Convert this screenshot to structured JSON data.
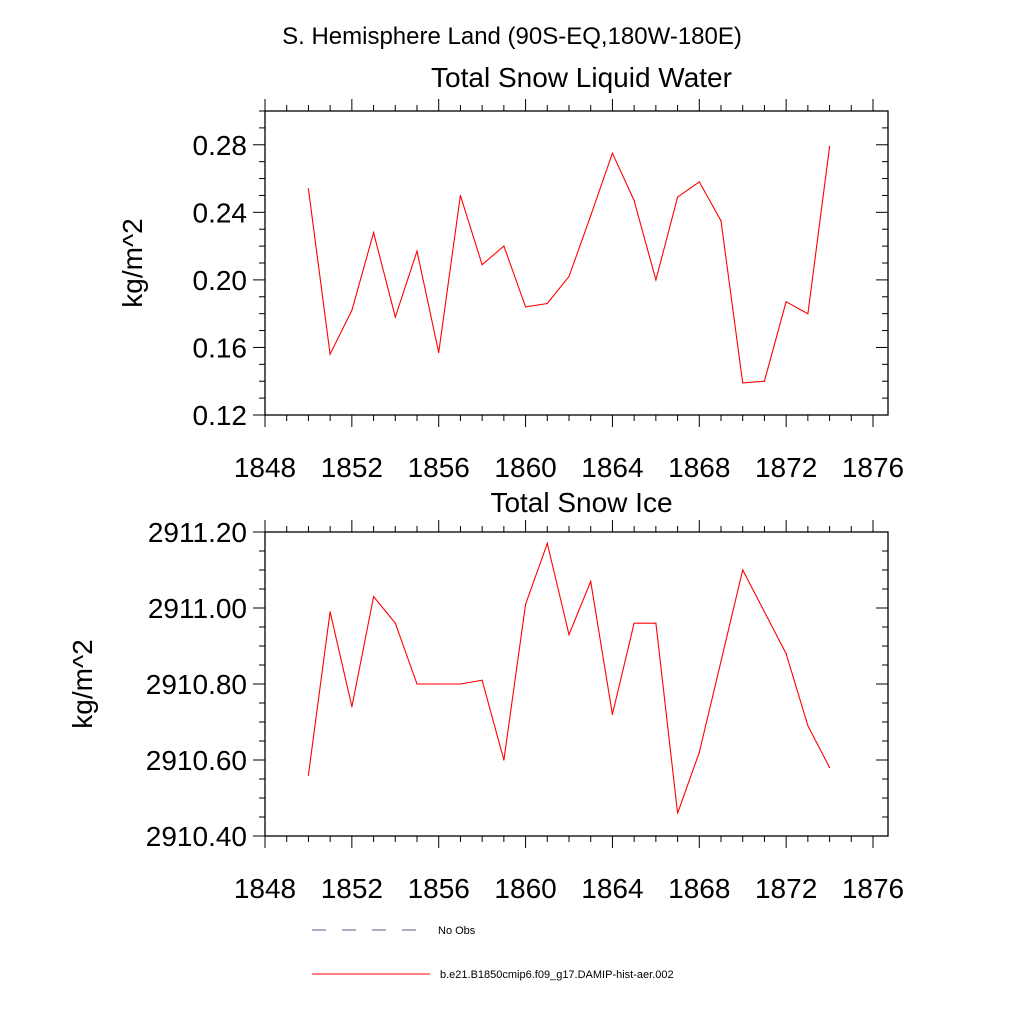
{
  "figure": {
    "title": "S. Hemisphere Land (90S-EQ,180W-180E)",
    "legend": [
      {
        "label": "No Obs",
        "style": "dashed",
        "color": "#5a5a8a"
      },
      {
        "label": "b.e21.B1850cmip6.f09_g17.DAMIP-hist-aer.002",
        "style": "solid",
        "color": "#ff0000"
      }
    ]
  },
  "chart_data": [
    {
      "type": "line",
      "title": "Total Snow Liquid Water",
      "xlabel": "",
      "ylabel": "kg/m^2",
      "xlim": [
        1848,
        1876
      ],
      "ylim": [
        0.12,
        0.3
      ],
      "x_ticks": [
        1848,
        1852,
        1856,
        1860,
        1864,
        1868,
        1872,
        1876
      ],
      "x_tick_labels": [
        "1848",
        "1852",
        "1856",
        "1860",
        "1864",
        "1868",
        "1872",
        "1876"
      ],
      "y_ticks": [
        0.12,
        0.16,
        0.2,
        0.24,
        0.28
      ],
      "y_tick_labels": [
        "0.12",
        "0.16",
        "0.20",
        "0.24",
        "0.28"
      ],
      "grid": false,
      "series": [
        {
          "name": "b.e21.B1850cmip6.f09_g17.DAMIP-hist-aer.002",
          "color": "#ff0000",
          "x": [
            1850,
            1851,
            1852,
            1853,
            1854,
            1855,
            1856,
            1857,
            1858,
            1859,
            1860,
            1861,
            1862,
            1863,
            1864,
            1865,
            1866,
            1867,
            1868,
            1869,
            1870,
            1871,
            1872,
            1873,
            1874
          ],
          "y": [
            0.254,
            0.156,
            0.182,
            0.228,
            0.178,
            0.217,
            0.157,
            0.25,
            0.209,
            0.22,
            0.184,
            0.186,
            0.202,
            0.238,
            0.275,
            0.247,
            0.2,
            0.249,
            0.258,
            0.235,
            0.139,
            0.14,
            0.187,
            0.18,
            0.279
          ]
        }
      ]
    },
    {
      "type": "line",
      "title": "Total Snow Ice",
      "xlabel": "",
      "ylabel": "kg/m^2",
      "xlim": [
        1848,
        1876
      ],
      "ylim": [
        2910.4,
        2911.2
      ],
      "x_ticks": [
        1848,
        1852,
        1856,
        1860,
        1864,
        1868,
        1872,
        1876
      ],
      "x_tick_labels": [
        "1848",
        "1852",
        "1856",
        "1860",
        "1864",
        "1868",
        "1872",
        "1876"
      ],
      "y_ticks": [
        2910.4,
        2910.6,
        2910.8,
        2911.0,
        2911.2
      ],
      "y_tick_labels": [
        "2910.40",
        "2910.60",
        "2910.80",
        "2911.00",
        "2911.20"
      ],
      "grid": false,
      "series": [
        {
          "name": "b.e21.B1850cmip6.f09_g17.DAMIP-hist-aer.002",
          "color": "#ff0000",
          "x": [
            1850,
            1851,
            1852,
            1853,
            1854,
            1855,
            1856,
            1857,
            1858,
            1859,
            1860,
            1861,
            1862,
            1863,
            1864,
            1865,
            1866,
            1867,
            1868,
            1869,
            1870,
            1871,
            1872,
            1873,
            1874
          ],
          "y": [
            2910.56,
            2910.99,
            2910.74,
            2911.03,
            2910.96,
            2910.8,
            2910.8,
            2910.8,
            2910.81,
            2910.6,
            2911.01,
            2911.17,
            2910.93,
            2911.07,
            2910.72,
            2910.96,
            2910.96,
            2910.46,
            2910.62,
            2910.86,
            2911.1,
            2910.99,
            2910.88,
            2910.69,
            2910.58
          ]
        }
      ]
    }
  ]
}
